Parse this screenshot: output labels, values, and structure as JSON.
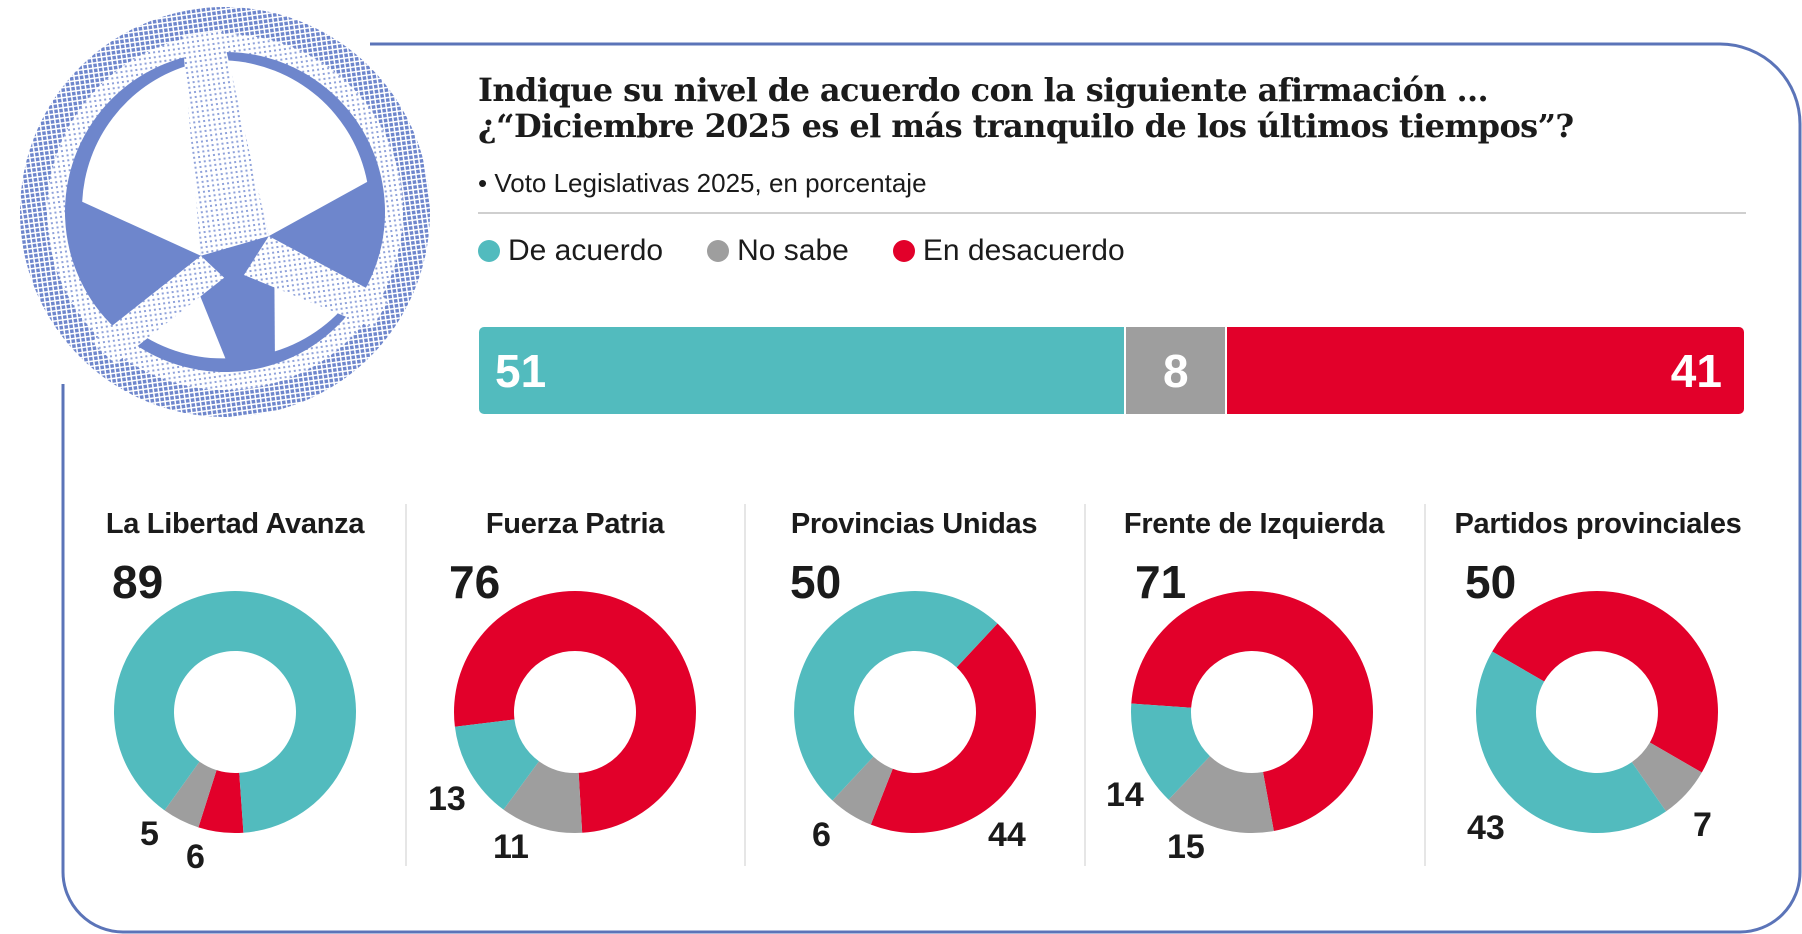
{
  "header": {
    "title_line1": "Indique su nivel de acuerdo con la siguiente afirmación ...",
    "title_line2": "¿“Diciembre 2025 es el más tranquilo de los últimos tiempos”?",
    "subtitle": "• Voto Legislativas 2025, en porcentaje"
  },
  "colors": {
    "de_acuerdo": "#52BBBE",
    "no_sabe": "#9E9E9E",
    "en_desacuerdo": "#E2002A",
    "frame": "#5B74B8",
    "logo": "#6E86CC"
  },
  "logo": {
    "icon": "peace-symbol-icon"
  },
  "legend": [
    {
      "key": "de_acuerdo",
      "label": "De acuerdo"
    },
    {
      "key": "no_sabe",
      "label": "No sabe"
    },
    {
      "key": "en_desacuerdo",
      "label": "En desacuerdo"
    }
  ],
  "chart_data": [
    {
      "type": "bar",
      "title": "Total",
      "orientation": "stacked-horizontal",
      "categories": [
        "De acuerdo",
        "No sabe",
        "En desacuerdo"
      ],
      "values": [
        51,
        8,
        41
      ],
      "labels": [
        "51",
        "8",
        "41"
      ],
      "unit": "%"
    },
    {
      "type": "pie",
      "variant": "donut",
      "groups": [
        {
          "name": "La Libertad Avanza",
          "headline": "89",
          "values": {
            "de_acuerdo": 89,
            "no_sabe": 5,
            "en_desacuerdo": 6
          },
          "labels": [
            "5",
            "6"
          ]
        },
        {
          "name": "Fuerza Patria",
          "headline": "76",
          "values": {
            "de_acuerdo": 13,
            "no_sabe": 11,
            "en_desacuerdo": 76
          },
          "labels": [
            "13",
            "11"
          ]
        },
        {
          "name": "Provincias Unidas",
          "headline": "50",
          "values": {
            "de_acuerdo": 50,
            "no_sabe": 6,
            "en_desacuerdo": 44
          },
          "labels": [
            "6",
            "44"
          ]
        },
        {
          "name": "Frente de Izquierda",
          "headline": "71",
          "values": {
            "de_acuerdo": 14,
            "no_sabe": 15,
            "en_desacuerdo": 71
          },
          "labels": [
            "14",
            "15"
          ]
        },
        {
          "name": "Partidos provinciales",
          "headline": "50",
          "values": {
            "de_acuerdo": 43,
            "no_sabe": 7,
            "en_desacuerdo": 50
          },
          "labels": [
            "43",
            "7"
          ]
        }
      ],
      "legend": [
        "De acuerdo",
        "No sabe",
        "En desacuerdo"
      ],
      "unit": "%"
    }
  ]
}
